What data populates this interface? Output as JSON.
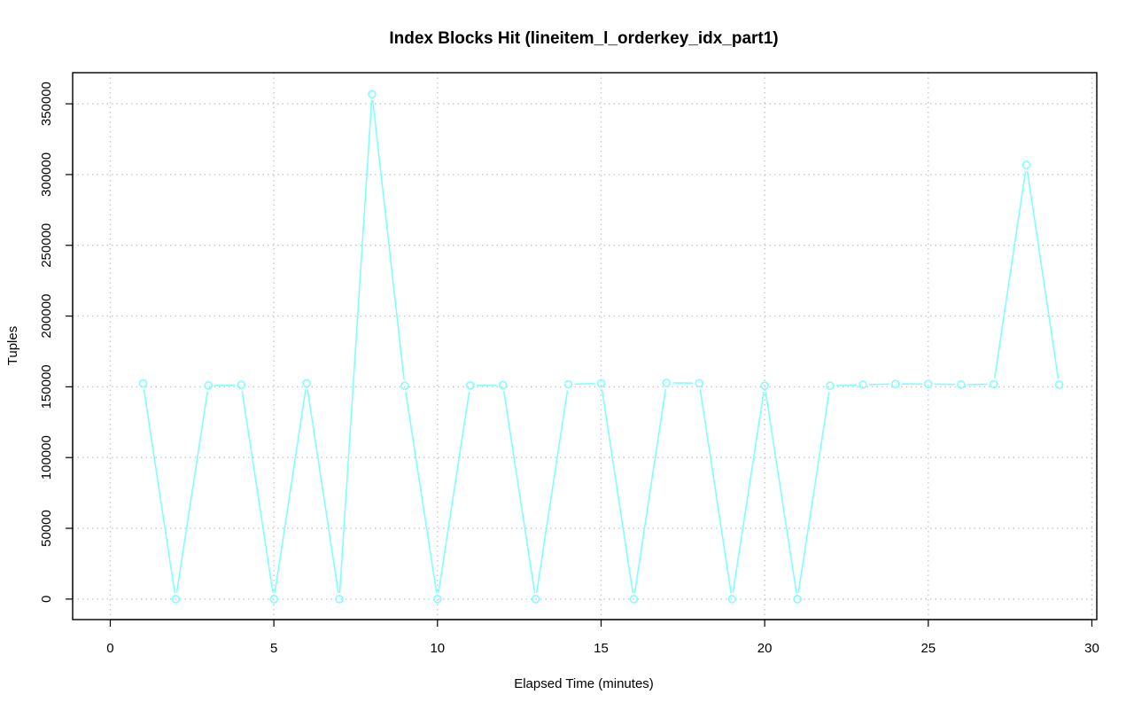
{
  "chart_data": {
    "type": "line",
    "title": "Index Blocks Hit (lineitem_l_orderkey_idx_part1)",
    "xlabel": "Elapsed Time (minutes)",
    "ylabel": "Tuples",
    "xlim": [
      -1.15,
      30.15
    ],
    "ylim": [
      -14500,
      372000
    ],
    "xticks": [
      0,
      5,
      10,
      15,
      20,
      25,
      30
    ],
    "xtick_labels": [
      "0",
      "5",
      "10",
      "15",
      "20",
      "25",
      "30"
    ],
    "yticks": [
      0,
      50000,
      100000,
      150000,
      200000,
      250000,
      300000,
      350000
    ],
    "ytick_labels": [
      "0",
      "50000",
      "100000",
      "150000",
      "200000",
      "250000",
      "300000",
      "350000"
    ],
    "grid": true,
    "series": [
      {
        "color": "#80ffff",
        "marker": "open-circle",
        "x": [
          1,
          2,
          3,
          4,
          5,
          6,
          7,
          8,
          9,
          10,
          11,
          12,
          13,
          14,
          15,
          16,
          17,
          18,
          19,
          20,
          21,
          22,
          23,
          24,
          25,
          26,
          27,
          28,
          29
        ],
        "y": [
          152500,
          0,
          151000,
          151300,
          0,
          152500,
          0,
          356800,
          150800,
          0,
          151000,
          151200,
          0,
          151800,
          152500,
          0,
          152800,
          152600,
          0,
          150800,
          0,
          150800,
          151500,
          152000,
          152000,
          151600,
          151800,
          306800,
          151500
        ]
      }
    ]
  }
}
